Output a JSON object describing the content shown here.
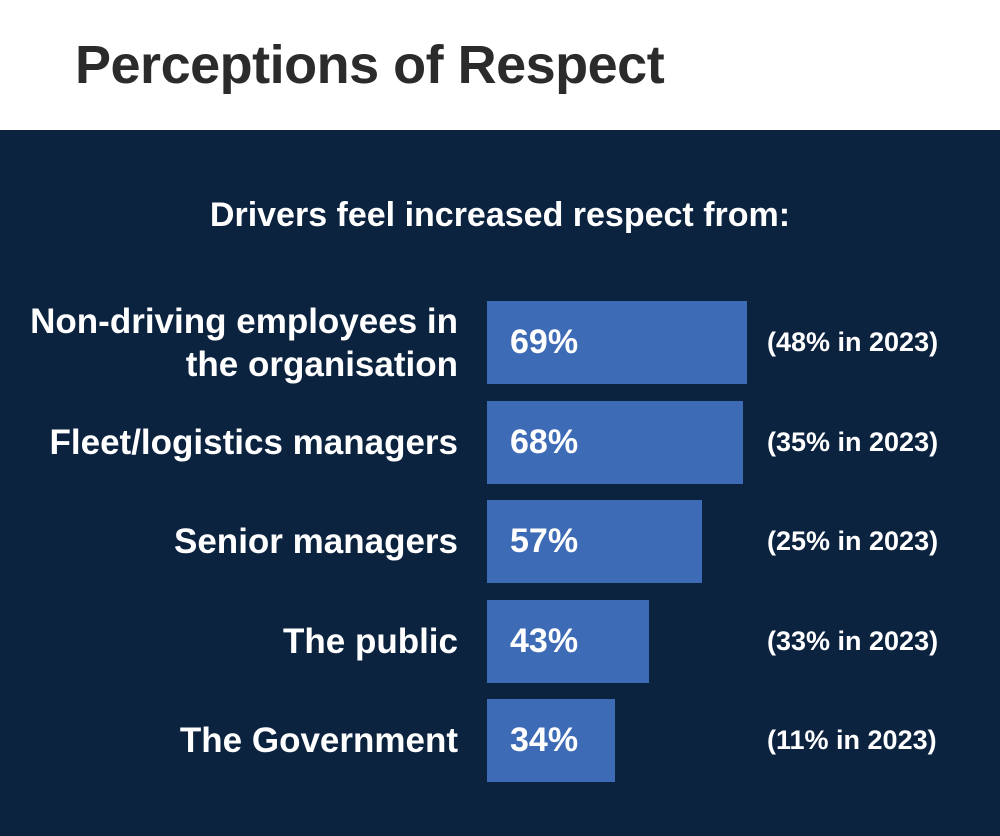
{
  "chart_data": {
    "type": "bar",
    "orientation": "horizontal",
    "title": "Perceptions of Respect",
    "subtitle": "Drivers feel increased respect from:",
    "categories": [
      "Non-driving employees in the organisation",
      "Fleet/logistics managers",
      "Senior managers",
      "The public",
      "The Government"
    ],
    "values": [
      69,
      68,
      57,
      43,
      34
    ],
    "value_labels": [
      "69%",
      "68%",
      "57%",
      "43%",
      "34%"
    ],
    "annotations": [
      "(48% in 2023)",
      "(35% in 2023)",
      "(25% in 2023)",
      "(33% in 2023)",
      "(11% in 2023)"
    ],
    "color": "#3d6bb5"
  }
}
